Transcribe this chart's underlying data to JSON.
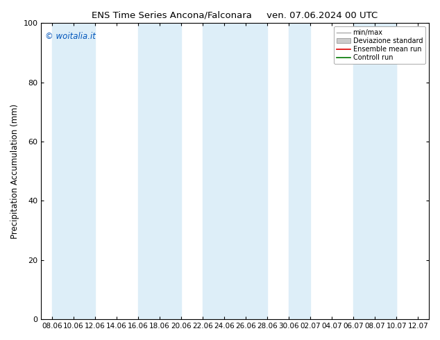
{
  "title": "ENS Time Series Ancona/Falconara",
  "title2": "ven. 07.06.2024 00 UTC",
  "ylabel": "Precipitation Accumulation (mm)",
  "ylim": [
    0,
    100
  ],
  "yticks": [
    0,
    20,
    40,
    60,
    80,
    100
  ],
  "x_labels": [
    "08.06",
    "10.06",
    "12.06",
    "14.06",
    "16.06",
    "18.06",
    "20.06",
    "22.06",
    "24.06",
    "26.06",
    "28.06",
    "30.06",
    "02.07",
    "04.07",
    "06.07",
    "08.07",
    "10.07",
    "12.07"
  ],
  "watermark": "© woitalia.it",
  "watermark_color": "#0055bb",
  "legend_entries": [
    "min/max",
    "Deviazione standard",
    "Ensemble mean run",
    "Controll run"
  ],
  "legend_line_color": "#aaaaaa",
  "legend_band_color": "#cccccc",
  "legend_red": "#dd0000",
  "legend_green": "#007700",
  "shaded_band_color": "#ddeef8",
  "shaded_band_alpha": 1.0,
  "background_color": "#ffffff",
  "shaded_x_positions": [
    0,
    4,
    7,
    9,
    11,
    14,
    15
  ],
  "shaded_x_widths": [
    2,
    2,
    2,
    1,
    1,
    2,
    1
  ],
  "fig_width": 6.34,
  "fig_height": 4.9,
  "dpi": 100
}
